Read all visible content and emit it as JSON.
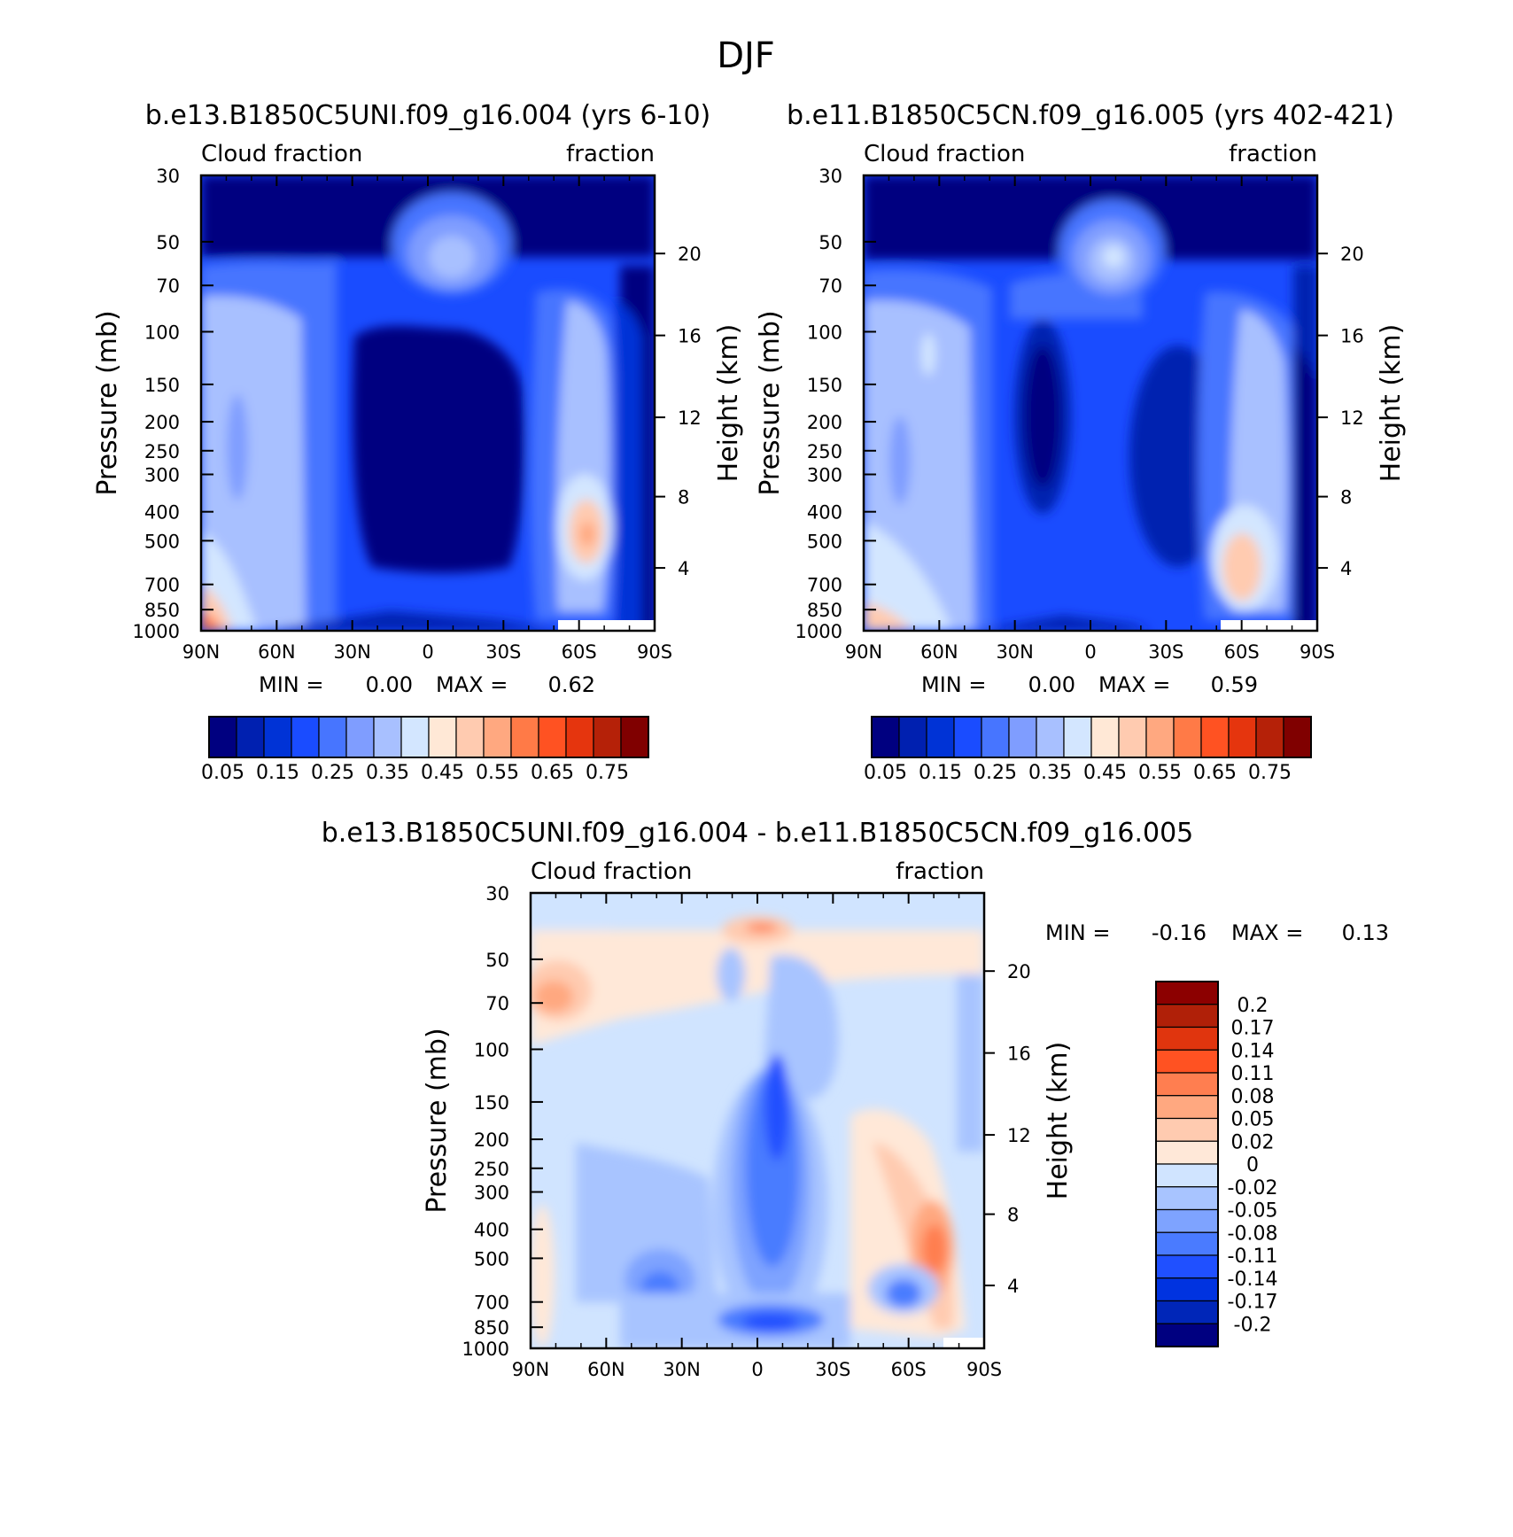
{
  "page": {
    "title": "DJF"
  },
  "colors": {
    "seq_palette": [
      "#000080",
      "#0020b0",
      "#0033d6",
      "#1a4cff",
      "#4775ff",
      "#7f9dff",
      "#a8c0ff",
      "#d3e6ff",
      "#ffe8d6",
      "#ffcbb0",
      "#ffa880",
      "#ff7a47",
      "#ff5222",
      "#e5350e",
      "#b52108",
      "#800000"
    ],
    "diff_palette": [
      "#000080",
      "#0026b8",
      "#0033e0",
      "#2050ff",
      "#4a7bff",
      "#7ea3ff",
      "#a8c4ff",
      "#d0e4ff",
      "#ffe8d8",
      "#ffcbb0",
      "#ffa880",
      "#ff7e50",
      "#ff5222",
      "#e0350e",
      "#b02008",
      "#8c0000"
    ],
    "frame": "#000000"
  },
  "chart_data": [
    {
      "id": "panel1",
      "type": "heatmap",
      "title": "b.e13.B1850C5UNI.f09_g16.004 (yrs 6-10)",
      "left_label": "Cloud fraction",
      "right_label": "fraction",
      "xlabel": "",
      "ylabel": "Pressure (mb)",
      "ylabel_right": "Height (km)",
      "x_ticks": [
        "90N",
        "60N",
        "30N",
        "0",
        "30S",
        "60S",
        "90S"
      ],
      "y_ticks": [
        "30",
        "50",
        "70",
        "100",
        "150",
        "200",
        "250",
        "300",
        "400",
        "500",
        "700",
        "850",
        "1000"
      ],
      "y_ticks_right": [
        "20",
        "16",
        "12",
        "8",
        "4"
      ],
      "min_label": "MIN =",
      "min": "0.00",
      "max_label": "MAX =",
      "max": "0.62",
      "colorbar_labels": [
        "0.05",
        "0.15",
        "0.25",
        "0.35",
        "0.45",
        "0.55",
        "0.65",
        "0.75"
      ],
      "ylim": [
        1000,
        30
      ],
      "xlim": [
        90,
        -90
      ]
    },
    {
      "id": "panel2",
      "type": "heatmap",
      "title": "b.e11.B1850C5CN.f09_g16.005 (yrs 402-421)",
      "left_label": "Cloud fraction",
      "right_label": "fraction",
      "xlabel": "",
      "ylabel": "Pressure (mb)",
      "ylabel_right": "Height (km)",
      "x_ticks": [
        "90N",
        "60N",
        "30N",
        "0",
        "30S",
        "60S",
        "90S"
      ],
      "y_ticks": [
        "30",
        "50",
        "70",
        "100",
        "150",
        "200",
        "250",
        "300",
        "400",
        "500",
        "700",
        "850",
        "1000"
      ],
      "y_ticks_right": [
        "20",
        "16",
        "12",
        "8",
        "4"
      ],
      "min_label": "MIN =",
      "min": "0.00",
      "max_label": "MAX =",
      "max": "0.59",
      "colorbar_labels": [
        "0.05",
        "0.15",
        "0.25",
        "0.35",
        "0.45",
        "0.55",
        "0.65",
        "0.75"
      ],
      "ylim": [
        1000,
        30
      ],
      "xlim": [
        90,
        -90
      ]
    },
    {
      "id": "panel3",
      "type": "heatmap",
      "title": "b.e13.B1850C5UNI.f09_g16.004 - b.e11.B1850C5CN.f09_g16.005",
      "left_label": "Cloud fraction",
      "right_label": "fraction",
      "xlabel": "",
      "ylabel": "Pressure (mb)",
      "ylabel_right": "Height (km)",
      "x_ticks": [
        "90N",
        "60N",
        "30N",
        "0",
        "30S",
        "60S",
        "90S"
      ],
      "y_ticks": [
        "30",
        "50",
        "70",
        "100",
        "150",
        "200",
        "250",
        "300",
        "400",
        "500",
        "700",
        "850",
        "1000"
      ],
      "y_ticks_right": [
        "20",
        "16",
        "12",
        "8",
        "4"
      ],
      "min_label": "MIN =",
      "min": "-0.16",
      "max_label": "MAX =",
      "max": "0.13",
      "colorbar_labels": [
        "0.2",
        "0.17",
        "0.14",
        "0.11",
        "0.08",
        "0.05",
        "0.02",
        "0",
        "-0.02",
        "-0.05",
        "-0.08",
        "-0.11",
        "-0.14",
        "-0.17",
        "-0.2"
      ],
      "ylim": [
        1000,
        30
      ],
      "xlim": [
        90,
        -90
      ]
    }
  ]
}
